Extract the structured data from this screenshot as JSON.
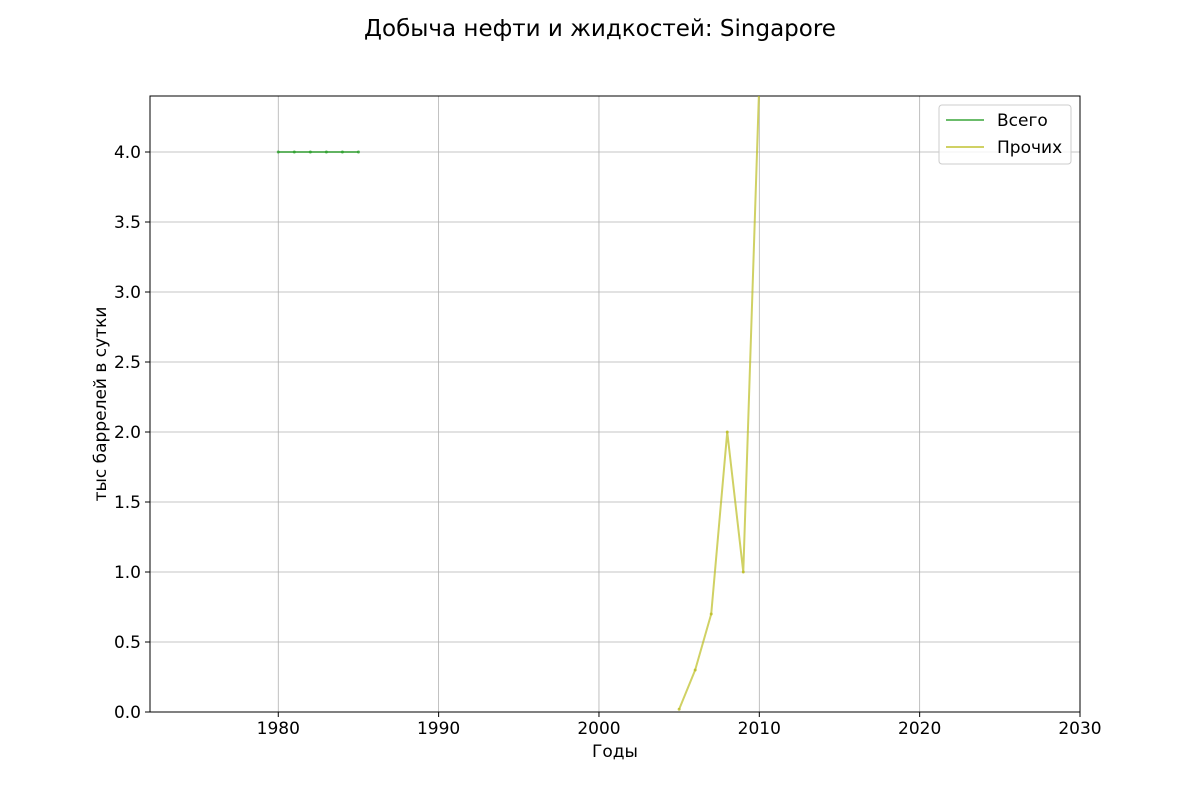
{
  "chart_data": {
    "type": "line",
    "title": "Добыча нефти и жидкостей: Singapore",
    "xlabel": "Годы",
    "ylabel": "тыс баррелей в сутки",
    "xlim": [
      1972,
      2030
    ],
    "ylim": [
      0,
      4.4
    ],
    "x_ticks": [
      1980,
      1990,
      2000,
      2010,
      2020,
      2030
    ],
    "y_ticks": [
      0.0,
      0.5,
      1.0,
      1.5,
      2.0,
      2.5,
      3.0,
      3.5,
      4.0
    ],
    "y_tick_labels": [
      "0.0",
      "0.5",
      "1.0",
      "1.5",
      "2.0",
      "2.5",
      "3.0",
      "3.5",
      "4.0"
    ],
    "grid": true,
    "legend_position": "top-right",
    "series": [
      {
        "name": "Всего",
        "color": "#2ca02c",
        "points": [
          [
            1980,
            4.0
          ],
          [
            1981,
            4.0
          ],
          [
            1982,
            4.0
          ],
          [
            1983,
            4.0
          ],
          [
            1984,
            4.0
          ],
          [
            1985,
            4.0
          ]
        ]
      },
      {
        "name": "Прочих",
        "color": "#bcbd22",
        "points": [
          [
            2005,
            0.02
          ],
          [
            2006,
            0.3
          ],
          [
            2007,
            0.7
          ],
          [
            2008,
            2.0
          ],
          [
            2009,
            1.0
          ],
          [
            2010,
            4.5
          ]
        ]
      }
    ]
  }
}
